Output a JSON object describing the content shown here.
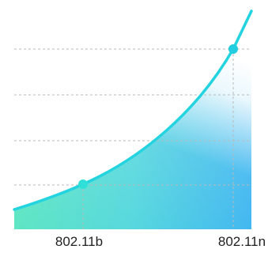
{
  "labels": [
    "802.11b",
    "802.11n"
  ]
}
